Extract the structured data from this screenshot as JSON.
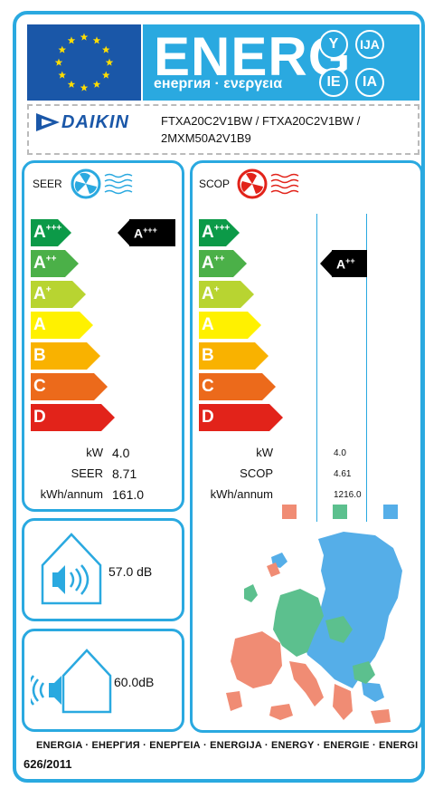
{
  "header": {
    "title": "ENERG",
    "subtitle": "енергия · ενεργεια",
    "languages": [
      "Y",
      "IJA",
      "IE",
      "IA"
    ]
  },
  "brand": "DAIKIN",
  "models": "FTXA20C2V1BW / FTXA20C2V1BW / 2MXM50A2V1B9",
  "scale": [
    "A+++",
    "A++",
    "A+",
    "A",
    "B",
    "C",
    "D"
  ],
  "scale_colors": [
    "#0c9a48",
    "#4bb048",
    "#b8d431",
    "#fff100",
    "#f9b200",
    "#ec6a1b",
    "#e2231a"
  ],
  "cooling": {
    "label": "SEER",
    "rating": "A+++",
    "rows": [
      {
        "unit": "kW",
        "value": "4.0"
      },
      {
        "unit": "SEER",
        "value": "8.71"
      },
      {
        "unit": "kWh/annum",
        "value": "161.0"
      }
    ]
  },
  "heating": {
    "label": "SCOP",
    "rating": "A++",
    "rows": [
      {
        "unit": "kW",
        "value": "4.0"
      },
      {
        "unit": "SCOP",
        "value": "4.61"
      },
      {
        "unit": "kWh/annum",
        "value": "1216.0"
      }
    ],
    "zone_colors": [
      "#f08c74",
      "#5cc08e",
      "#55aee8"
    ]
  },
  "noise": {
    "indoor": "57.0 dB",
    "outdoor_value": "60.0",
    "outdoor_unit": "dB"
  },
  "footer": {
    "languages": "ENERGIA · ЕНЕРГИЯ · ΕΝΕΡΓΕΙΑ · ENERGIJA · ENERGY · ENERGIE · ENERGI",
    "regulation": "626/2011"
  }
}
